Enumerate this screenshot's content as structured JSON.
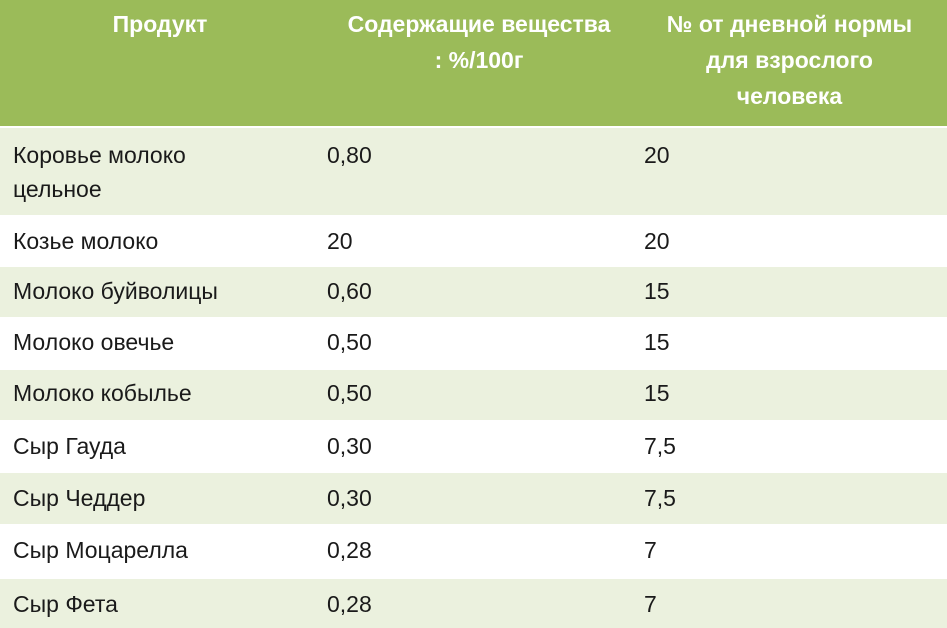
{
  "table": {
    "header": [
      "Продукт",
      "Содержащие вещества\n: %/100г",
      "№ от дневной нормы\nдля взрослого\nчеловека"
    ],
    "rows": [
      [
        "Коровье молоко\nцельное",
        "0,80",
        "20"
      ],
      [
        "Козье молоко",
        "20",
        "20"
      ],
      [
        "Молоко буйволицы",
        "0,60",
        "15"
      ],
      [
        "Молоко овечье",
        "0,50",
        "15"
      ],
      [
        "Молоко кобылье",
        "0,50",
        "15"
      ],
      [
        "Сыр Гауда",
        "0,30",
        "7,5"
      ],
      [
        "Сыр Чеддер",
        "0,30",
        "7,5"
      ],
      [
        "Сыр Моцарелла",
        "0,28",
        "7"
      ],
      [
        "Сыр Фета",
        "0,28",
        "7"
      ]
    ]
  },
  "colors": {
    "header_bg": "#9bbb59",
    "row_alt_bg": "#ebf1de",
    "row_plain_bg": "#ffffff",
    "header_text": "#ffffff",
    "body_text": "#1a1a1a"
  }
}
